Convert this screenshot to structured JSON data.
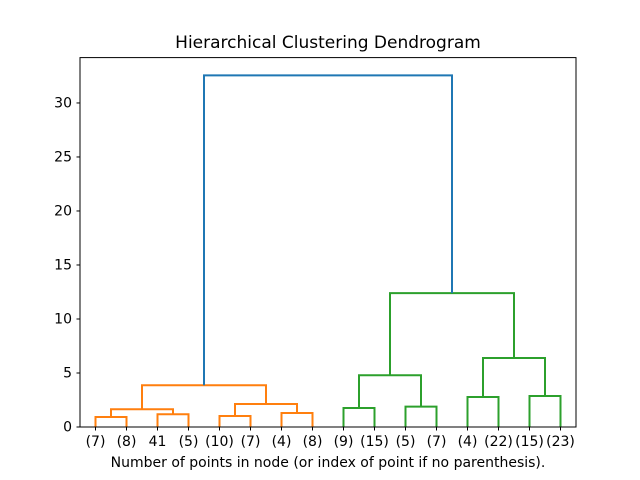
{
  "chart_data": {
    "type": "dendrogram",
    "title": "Hierarchical Clustering Dendrogram",
    "xlabel": "Number of points in node (or index of point if no parenthesis).",
    "ylabel": "",
    "grid": false,
    "legend": null,
    "xlim": [
      0,
      160
    ],
    "ylim": [
      0,
      34.2
    ],
    "y_ticks": [
      0,
      5,
      10,
      15,
      20,
      25,
      30
    ],
    "leaf_positions": [
      5,
      15,
      25,
      35,
      45,
      55,
      65,
      75,
      85,
      95,
      105,
      115,
      125,
      135,
      145,
      155
    ],
    "x_tick_labels": [
      "(7)",
      "(8)",
      "41",
      "(5)",
      "(10)",
      "(7)",
      "(4)",
      "(8)",
      "(9)",
      "(15)",
      "(5)",
      "(7)",
      "(4)",
      "(22)",
      "(15)",
      "(23)"
    ],
    "colors": {
      "above_threshold_blue": "#1f77b4",
      "left_cluster_orange": "#ff7f0e",
      "right_cluster_green": "#2ca02c",
      "axis": "#000000",
      "background": "#ffffff"
    },
    "links": [
      {
        "group": "left_cluster_orange",
        "x1": 5,
        "h1": 0,
        "x2": 15,
        "h2": 0,
        "h": 0.93
      },
      {
        "group": "left_cluster_orange",
        "x1": 25,
        "h1": 0,
        "x2": 35,
        "h2": 0,
        "h": 1.18
      },
      {
        "group": "left_cluster_orange",
        "x1": 10,
        "h1": 0.93,
        "x2": 30,
        "h2": 1.18,
        "h": 1.64
      },
      {
        "group": "left_cluster_orange",
        "x1": 45,
        "h1": 0,
        "x2": 55,
        "h2": 0,
        "h": 1.02
      },
      {
        "group": "left_cluster_orange",
        "x1": 65,
        "h1": 0,
        "x2": 75,
        "h2": 0,
        "h": 1.3
      },
      {
        "group": "left_cluster_orange",
        "x1": 50,
        "h1": 1.02,
        "x2": 70,
        "h2": 1.3,
        "h": 2.13
      },
      {
        "group": "left_cluster_orange",
        "x1": 20,
        "h1": 1.64,
        "x2": 60,
        "h2": 2.13,
        "h": 3.86
      },
      {
        "group": "right_cluster_green",
        "x1": 85,
        "h1": 0,
        "x2": 95,
        "h2": 0,
        "h": 1.76
      },
      {
        "group": "right_cluster_green",
        "x1": 105,
        "h1": 0,
        "x2": 115,
        "h2": 0,
        "h": 1.89
      },
      {
        "group": "right_cluster_green",
        "x1": 90,
        "h1": 1.76,
        "x2": 110,
        "h2": 1.89,
        "h": 4.79
      },
      {
        "group": "right_cluster_green",
        "x1": 125,
        "h1": 0,
        "x2": 135,
        "h2": 0,
        "h": 2.78
      },
      {
        "group": "right_cluster_green",
        "x1": 145,
        "h1": 0,
        "x2": 155,
        "h2": 0,
        "h": 2.87
      },
      {
        "group": "right_cluster_green",
        "x1": 130,
        "h1": 2.78,
        "x2": 150,
        "h2": 2.87,
        "h": 6.39
      },
      {
        "group": "right_cluster_green",
        "x1": 100,
        "h1": 4.79,
        "x2": 140,
        "h2": 6.39,
        "h": 12.4
      },
      {
        "group": "above_threshold_blue",
        "x1": 40,
        "h1": 3.86,
        "x2": 120,
        "h2": 12.4,
        "h": 32.56
      }
    ]
  }
}
